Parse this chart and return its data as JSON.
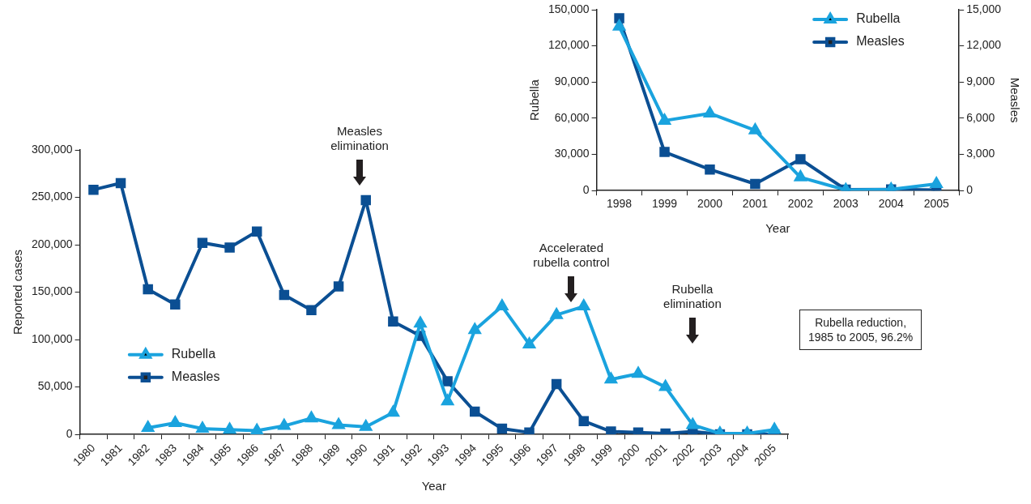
{
  "chart_data": [
    {
      "type": "line",
      "xlabel": "Year",
      "ylabel": "Reported cases",
      "categories": [
        "1980",
        "1981",
        "1982",
        "1983",
        "1984",
        "1985",
        "1986",
        "1987",
        "1988",
        "1989",
        "1990",
        "1991",
        "1992",
        "1993",
        "1994",
        "1995",
        "1996",
        "1997",
        "1998",
        "1999",
        "2000",
        "2001",
        "2002",
        "2003",
        "2004",
        "2005"
      ],
      "ylim": [
        0,
        300000
      ],
      "yticks": [
        {
          "value": 0,
          "label": "0"
        },
        {
          "value": 50000,
          "label": "50,000"
        },
        {
          "value": 100000,
          "label": "100,000"
        },
        {
          "value": 150000,
          "label": "150,000"
        },
        {
          "value": 200000,
          "label": "200,000"
        },
        {
          "value": 250000,
          "label": "250,000"
        },
        {
          "value": 300000,
          "label": "300,000"
        }
      ],
      "series": [
        {
          "name": "Rubella",
          "color": "#1aa3de",
          "marker": "triangle",
          "values": [
            null,
            null,
            7000,
            12000,
            6000,
            5000,
            4000,
            9000,
            17000,
            10000,
            8000,
            23000,
            117000,
            35000,
            110000,
            135000,
            95000,
            126000,
            135000,
            58000,
            64000,
            50000,
            10000,
            1000,
            1000,
            5000
          ]
        },
        {
          "name": "Measles",
          "color": "#0b4f93",
          "marker": "square",
          "values": [
            258000,
            265000,
            153000,
            137000,
            202000,
            197000,
            214000,
            147000,
            131000,
            156000,
            247000,
            119000,
            104000,
            56000,
            24000,
            6000,
            2000,
            53000,
            14000,
            3000,
            2000,
            1000,
            3000,
            0,
            0,
            0
          ]
        }
      ],
      "legend": "bottom left",
      "grid": false,
      "line_style": "solid",
      "annotations": [
        "Measles elimination",
        "Accelerated rubella control",
        "Rubella elimination",
        "Rubella reduction, 1985 to 2005, 96.2%"
      ]
    },
    {
      "type": "line",
      "xlabel": "Year",
      "ylabel": "Rubella",
      "y2label": "Measles",
      "categories": [
        "1998",
        "1999",
        "2000",
        "2001",
        "2002",
        "2003",
        "2004",
        "2005"
      ],
      "ylim": [
        0,
        150000
      ],
      "yticks": [
        {
          "value": 0,
          "label": "0"
        },
        {
          "value": 30000,
          "label": "30,000"
        },
        {
          "value": 60000,
          "label": "60,000"
        },
        {
          "value": 90000,
          "label": "90,000"
        },
        {
          "value": 120000,
          "label": "120,000"
        },
        {
          "value": 150000,
          "label": "150,000"
        }
      ],
      "y2lim": [
        0,
        15000
      ],
      "y2ticks": [
        {
          "value": 0,
          "label": "0"
        },
        {
          "value": 3000,
          "label": "3,000"
        },
        {
          "value": 6000,
          "label": "6,000"
        },
        {
          "value": 9000,
          "label": "9,000"
        },
        {
          "value": 12000,
          "label": "12,000"
        },
        {
          "value": 15000,
          "label": "15,000"
        }
      ],
      "series": [
        {
          "name": "Rubella",
          "color": "#1aa3de",
          "marker": "triangle",
          "axis": "y",
          "values": [
            136000,
            58000,
            64000,
            50000,
            11000,
            500,
            1000,
            5500
          ]
        },
        {
          "name": "Measles",
          "color": "#0b4f93",
          "marker": "square",
          "axis": "y2",
          "values": [
            14300,
            3200,
            1750,
            550,
            2600,
            80,
            100,
            50
          ]
        }
      ],
      "legend": "top right",
      "grid": false,
      "line_style": "solid"
    }
  ]
}
